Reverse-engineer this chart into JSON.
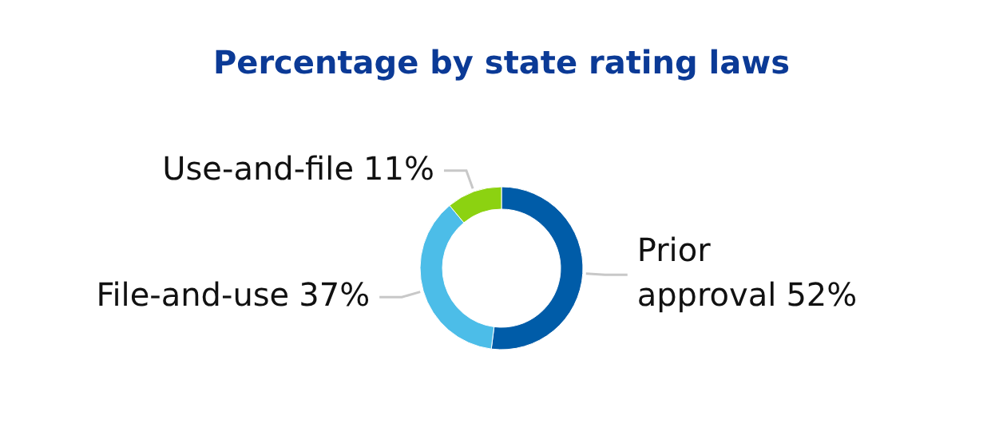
{
  "chart_data": {
    "type": "donut",
    "title": "Percentage by state rating laws",
    "categories": [
      "Prior approval",
      "File-and-use",
      "Use-and-file"
    ],
    "values": [
      52,
      37,
      11
    ],
    "colors": [
      "#005ca8",
      "#4cbde8",
      "#8cd211"
    ],
    "value_labels": [
      "52%",
      "37%",
      "11%"
    ]
  }
}
